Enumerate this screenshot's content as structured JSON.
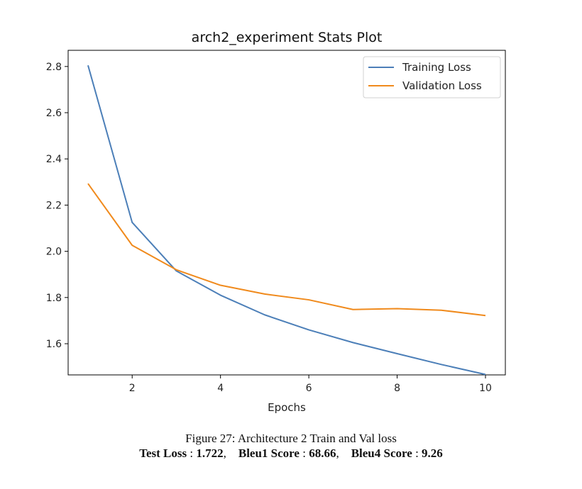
{
  "chart_data": {
    "type": "line",
    "title": "arch2_experiment Stats Plot",
    "xlabel": "Epochs",
    "ylabel": "",
    "x": [
      1,
      2,
      3,
      4,
      5,
      6,
      7,
      8,
      9,
      10
    ],
    "xlim": [
      0.55,
      10.45
    ],
    "ylim": [
      1.465,
      2.87
    ],
    "xticks": [
      2,
      4,
      6,
      8,
      10
    ],
    "yticks": [
      1.6,
      1.8,
      2.0,
      2.2,
      2.4,
      2.6,
      2.8
    ],
    "ytick_labels": [
      "1.6",
      "1.8",
      "2.0",
      "2.2",
      "2.4",
      "2.6",
      "2.8"
    ],
    "grid": false,
    "legend_position": "top-right",
    "series": [
      {
        "name": "Training Loss",
        "color": "#4c7fb8",
        "values": [
          2.805,
          2.125,
          1.915,
          1.81,
          1.725,
          1.66,
          1.605,
          1.557,
          1.51,
          1.467
        ]
      },
      {
        "name": "Validation Loss",
        "color": "#f08a1c",
        "values": [
          2.293,
          2.026,
          1.92,
          1.853,
          1.815,
          1.79,
          1.748,
          1.752,
          1.745,
          1.722
        ]
      }
    ]
  },
  "caption": {
    "line1": "Figure 27: Architecture 2 Train and Val loss",
    "test_loss_label": "Test Loss",
    "test_loss_value": "1.722",
    "bleu1_label": "Bleu1 Score",
    "bleu1_value": "68.66",
    "bleu4_label": "Bleu4 Score",
    "bleu4_value": "9.26"
  }
}
